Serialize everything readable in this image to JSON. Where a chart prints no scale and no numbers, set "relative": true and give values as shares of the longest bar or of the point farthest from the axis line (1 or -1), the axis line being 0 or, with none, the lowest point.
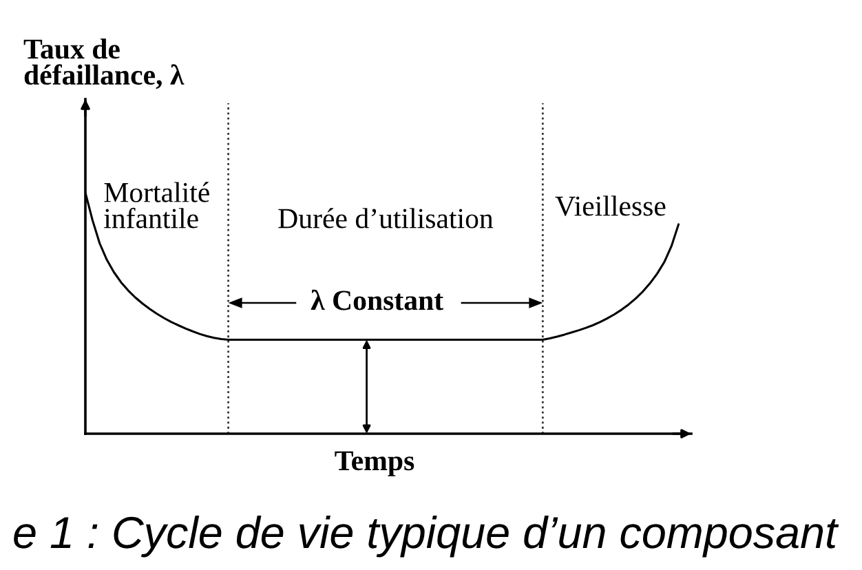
{
  "chart_data": {
    "type": "line",
    "relative": true,
    "xlabel": "Temps",
    "ylabel": "Taux de\ndéfaillance, λ",
    "categories": [
      null,
      null,
      null,
      null,
      null,
      null,
      null,
      null,
      null,
      null,
      null,
      null,
      null,
      null,
      null,
      null,
      null,
      null,
      null,
      null,
      null,
      null,
      null,
      null,
      null,
      null,
      null,
      null,
      null,
      null,
      null,
      null,
      null,
      null,
      null,
      null,
      null,
      null,
      null,
      null,
      null,
      null,
      null,
      null,
      null,
      null,
      null,
      null,
      null,
      null,
      null,
      null,
      null,
      null,
      null,
      null,
      null,
      null,
      null,
      null,
      null,
      null,
      null,
      null,
      null,
      null,
      null,
      null,
      null,
      null,
      null,
      null,
      null,
      null,
      null,
      null,
      null,
      null,
      null,
      null,
      null,
      null,
      null,
      null
    ],
    "series": [
      {
        "color": "#000000",
        "values": [
          1,
          0.886,
          0.79,
          0.722,
          0.67,
          0.628,
          0.594,
          0.565,
          0.54,
          0.518,
          0.498,
          0.48,
          0.464,
          0.45,
          0.437,
          0.425,
          0.414,
          0.405,
          0.398,
          0.393,
          0.39,
          0.39,
          0.39,
          0.39,
          0.39,
          0.39,
          0.39,
          0.39,
          0.39,
          0.39,
          0.39,
          0.39,
          0.39,
          0.39,
          0.39,
          0.39,
          0.39,
          0.39,
          0.39,
          0.39,
          0.39,
          0.39,
          0.39,
          0.39,
          0.39,
          0.39,
          0.39,
          0.39,
          0.39,
          0.39,
          0.39,
          0.39,
          0.39,
          0.39,
          0.39,
          0.39,
          0.39,
          0.39,
          0.39,
          0.39,
          0.39,
          0.39,
          0.39,
          0.39,
          0.39,
          0.396,
          0.403,
          0.411,
          0.42,
          0.429,
          0.439,
          0.45,
          0.463,
          0.478,
          0.495,
          0.514,
          0.536,
          0.561,
          0.59,
          0.624,
          0.664,
          0.712,
          0.778,
          0.869
        ]
      }
    ],
    "annotations": [
      "Mortalité\ninfantile",
      "Durée d’utilisation",
      "Vieillesse",
      "λ Constant",
      "e 1 : Cycle de vie typique d’un composant"
    ]
  }
}
